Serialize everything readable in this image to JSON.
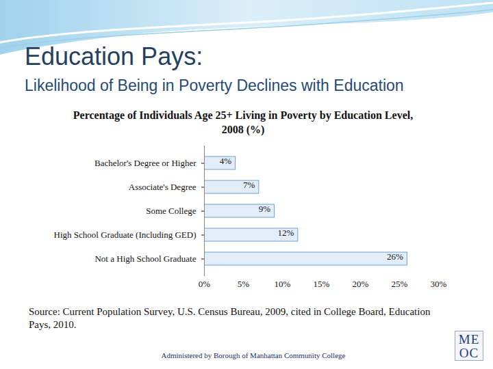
{
  "header": {
    "title": "Education Pays:",
    "subtitle": "Likelihood of Being in Poverty Declines with Education",
    "footer": "Administered by Borough of Manhattan Community College",
    "logo": [
      "ME",
      "OC"
    ]
  },
  "chart_data": {
    "type": "bar",
    "orientation": "horizontal",
    "title": "Percentage of Individuals Age 25+ Living in Poverty by Education Level, 2008 (%)",
    "categories": [
      "Bachelor's Degree or Higher",
      "Associate's Degree",
      "Some College",
      "High School Graduate (Including GED)",
      "Not a High School Graduate"
    ],
    "values": [
      4,
      7,
      9,
      12,
      26
    ],
    "value_labels": [
      "4%",
      "7%",
      "9%",
      "12%",
      "26%"
    ],
    "data_labels": true,
    "color": "#e2edf9",
    "xlim": [
      0,
      30
    ],
    "xticks": [
      {
        "value": 0,
        "label": "0%"
      },
      {
        "value": 5,
        "label": "5%"
      },
      {
        "value": 10,
        "label": "10%"
      },
      {
        "value": 15,
        "label": "15%"
      },
      {
        "value": 20,
        "label": "20%"
      },
      {
        "value": 25,
        "label": "25%"
      },
      {
        "value": 30,
        "label": "30%"
      }
    ],
    "grid": false,
    "annotations": [
      "Source: Current Population Survey, U.S. Census Bureau, 2009, cited in College Board, Education Pays, 2010."
    ]
  }
}
